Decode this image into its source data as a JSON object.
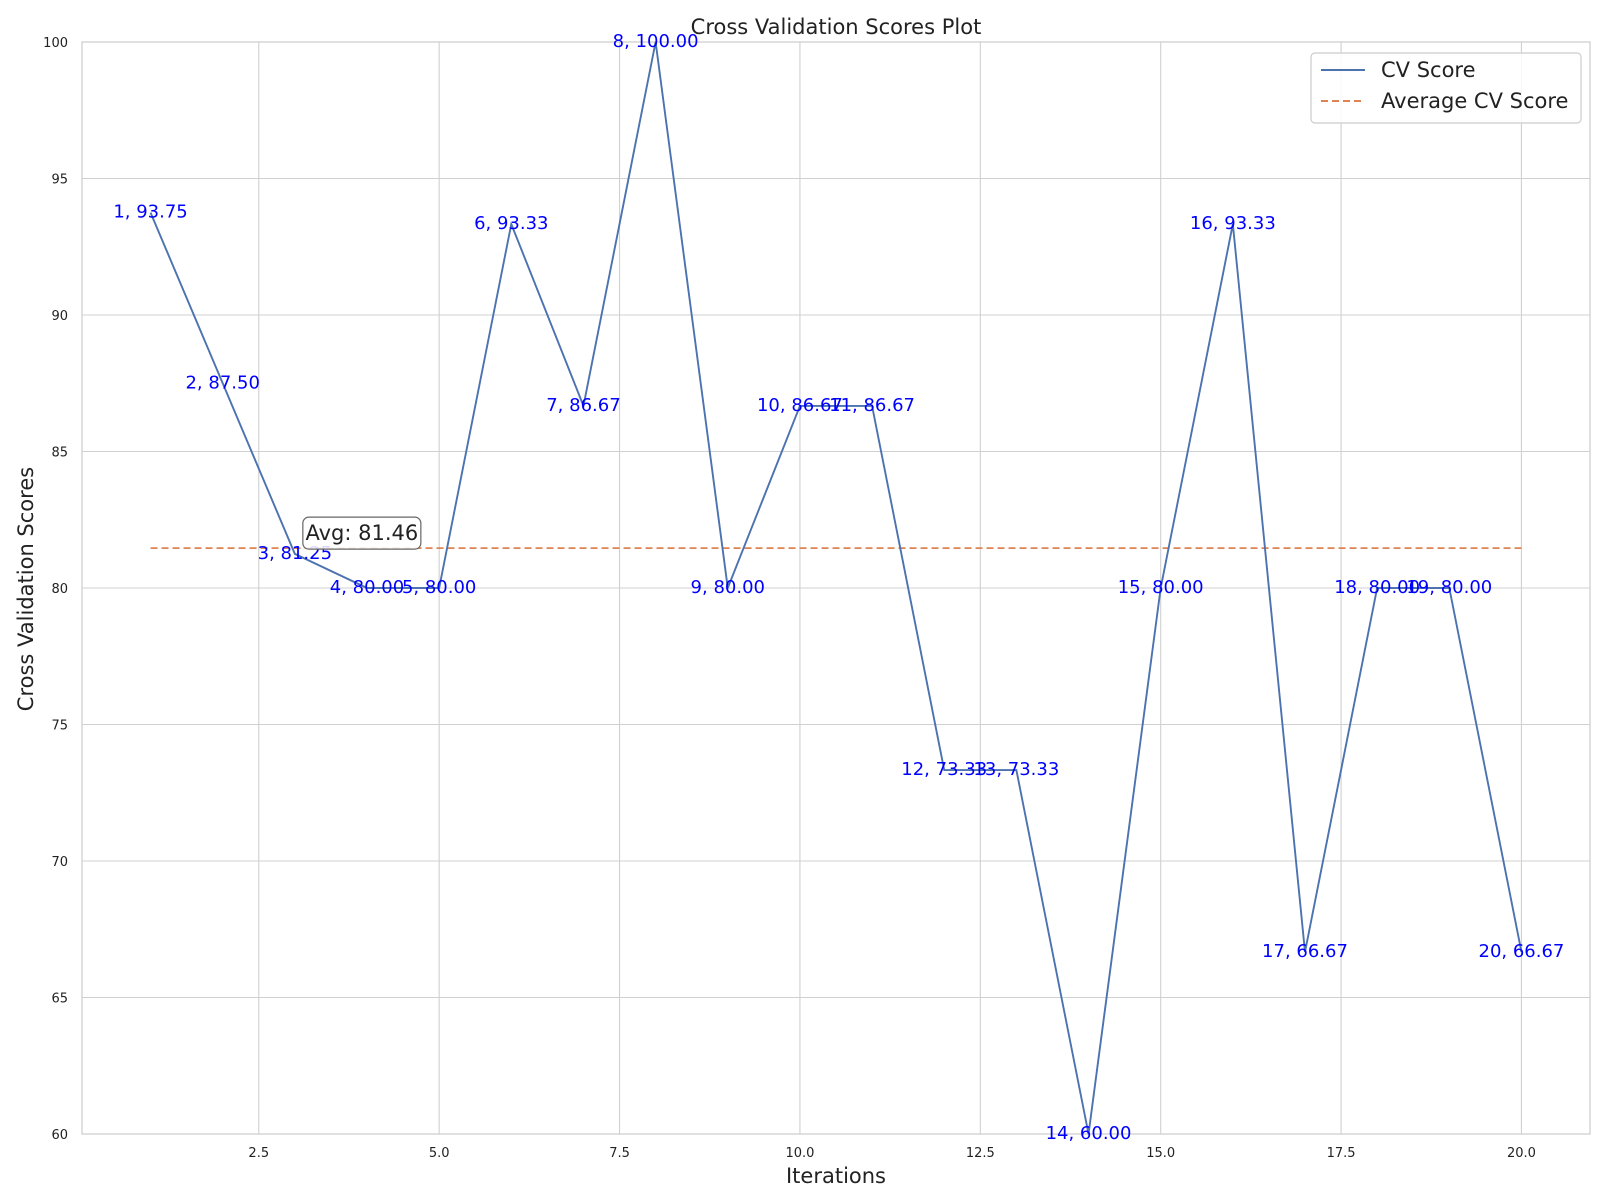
{
  "chart_data": {
    "type": "line",
    "title": "Cross Validation Scores Plot",
    "xlabel": "Iterations",
    "ylabel": "Cross Validation Scores",
    "xlim": [
      0.05,
      20.95
    ],
    "ylim": [
      60,
      100
    ],
    "x_ticks": [
      2.5,
      5.0,
      7.5,
      10.0,
      12.5,
      15.0,
      17.5,
      20.0
    ],
    "x_tick_labels": [
      "2.5",
      "5.0",
      "7.5",
      "10.0",
      "12.5",
      "15.0",
      "17.5",
      "20.0"
    ],
    "y_ticks": [
      60,
      65,
      70,
      75,
      80,
      85,
      90,
      95,
      100
    ],
    "y_tick_labels": [
      "60",
      "65",
      "70",
      "75",
      "80",
      "85",
      "90",
      "95",
      "100"
    ],
    "grid": true,
    "legend_position": "top-right",
    "series": [
      {
        "name": "CV Score",
        "color": "#4c72b0",
        "style": "solid",
        "x": [
          1,
          2,
          3,
          4,
          5,
          6,
          7,
          8,
          9,
          10,
          11,
          12,
          13,
          14,
          15,
          16,
          17,
          18,
          19,
          20
        ],
        "values": [
          93.75,
          87.5,
          81.25,
          80.0,
          80.0,
          93.33,
          86.67,
          100.0,
          80.0,
          86.67,
          86.67,
          73.33,
          73.33,
          60.0,
          80.0,
          93.33,
          66.67,
          80.0,
          80.0,
          66.67
        ]
      },
      {
        "name": "Average CV Score",
        "color": "#dd8452",
        "style": "dashed",
        "x": [
          1,
          20
        ],
        "values": [
          81.46,
          81.46
        ]
      }
    ],
    "point_labels": [
      "1, 93.75",
      "2, 87.50",
      "3, 81.25",
      "4, 80.00",
      "5, 80.00",
      "6, 93.33",
      "7, 86.67",
      "8, 100.00",
      "9, 80.00",
      "10, 86.67",
      "11, 86.67",
      "12, 73.33",
      "13, 73.33",
      "14, 60.00",
      "15, 80.00",
      "16, 93.33",
      "17, 66.67",
      "18, 80.00",
      "19, 80.00",
      "20, 66.67"
    ],
    "point_label_color": "#0000ff",
    "annotation": {
      "text": "Avg: 81.46",
      "x": 3,
      "y": 81.46
    }
  }
}
